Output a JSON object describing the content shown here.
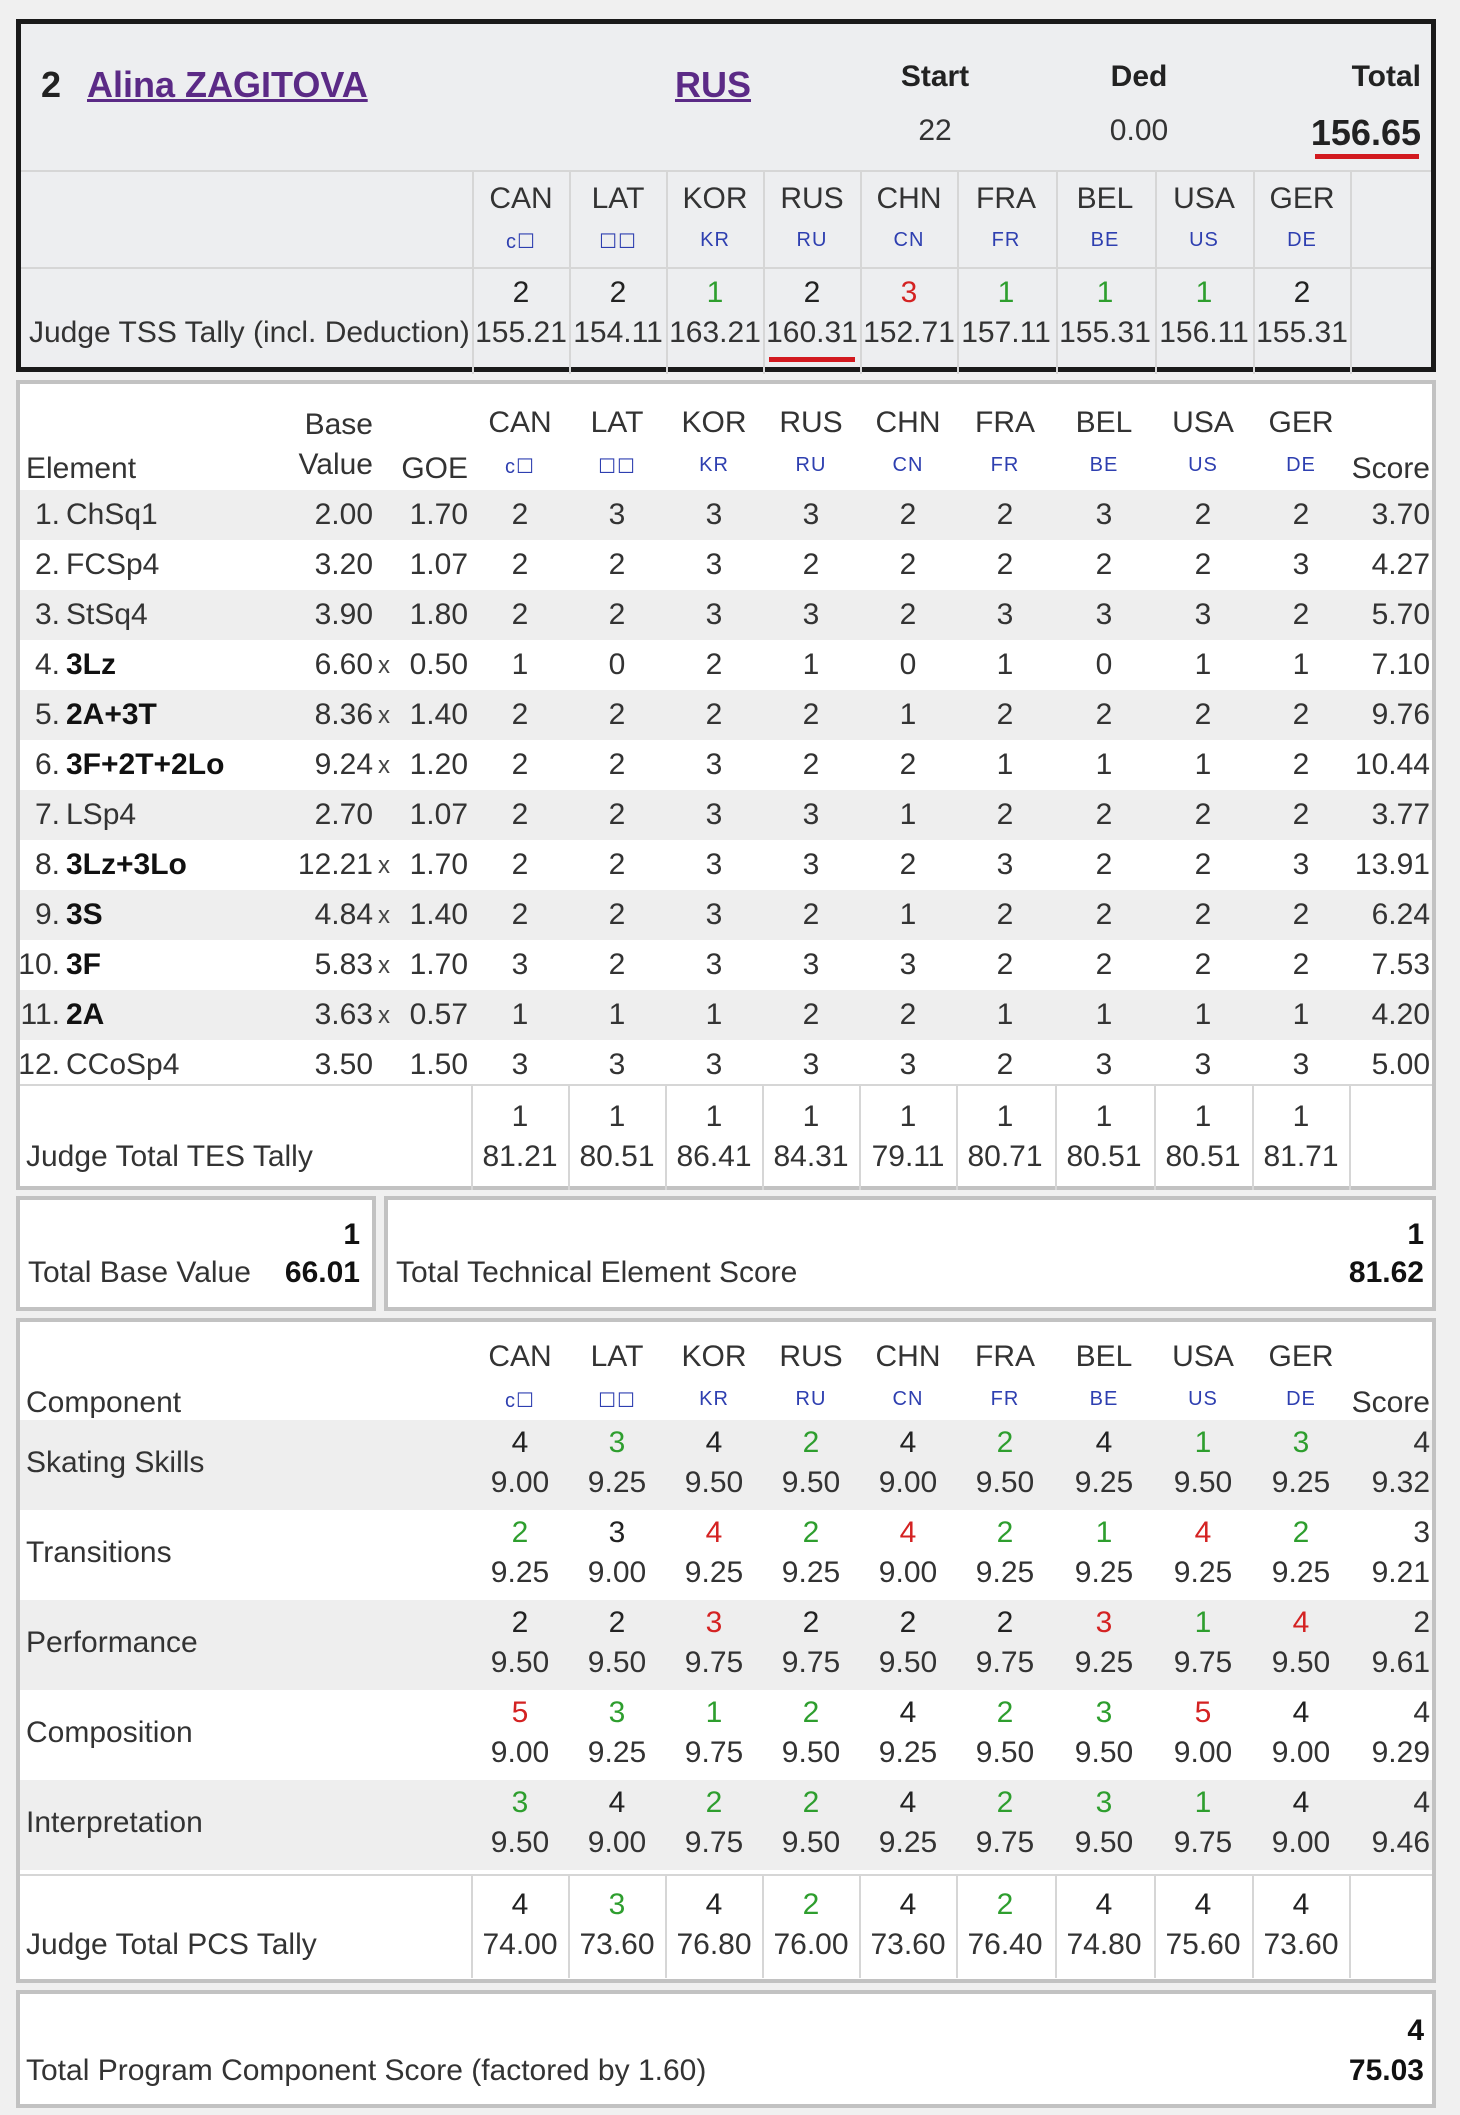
{
  "skater": {
    "rank": "2",
    "name": "Alina ZAGITOVA",
    "nation": "RUS"
  },
  "summary": {
    "start_label": "Start",
    "start_value": "22",
    "ded_label": "Ded",
    "ded_value": "0.00",
    "total_label": "Total",
    "total_value": "156.65"
  },
  "judges": [
    {
      "code": "CAN",
      "flag": "c☐"
    },
    {
      "code": "LAT",
      "flag": "☐☐"
    },
    {
      "code": "KOR",
      "flag": "KR"
    },
    {
      "code": "RUS",
      "flag": "RU"
    },
    {
      "code": "CHN",
      "flag": "CN"
    },
    {
      "code": "FRA",
      "flag": "FR"
    },
    {
      "code": "BEL",
      "flag": "BE"
    },
    {
      "code": "USA",
      "flag": "US"
    },
    {
      "code": "GER",
      "flag": "DE"
    }
  ],
  "tss_tally": {
    "label": "Judge TSS Tally (incl. Deduction)",
    "ranks": [
      {
        "v": "2",
        "color": "black"
      },
      {
        "v": "2",
        "color": "black"
      },
      {
        "v": "1",
        "color": "green"
      },
      {
        "v": "2",
        "color": "black"
      },
      {
        "v": "3",
        "color": "red"
      },
      {
        "v": "1",
        "color": "green"
      },
      {
        "v": "1",
        "color": "green"
      },
      {
        "v": "1",
        "color": "green"
      },
      {
        "v": "2",
        "color": "black"
      }
    ],
    "values": [
      "155.21",
      "154.11",
      "163.21",
      "160.31",
      "152.71",
      "157.11",
      "155.31",
      "156.11",
      "155.31"
    ]
  },
  "elements_header": {
    "element": "Element",
    "base1": "Base",
    "base2": "Value",
    "goe": "GOE",
    "score": "Score"
  },
  "elements": [
    {
      "no": "1.",
      "name": "ChSq1",
      "bold": false,
      "base": "2.00",
      "x": "",
      "goe": "1.70",
      "marks": [
        "2",
        "3",
        "3",
        "3",
        "2",
        "2",
        "3",
        "2",
        "2"
      ],
      "score": "3.70"
    },
    {
      "no": "2.",
      "name": "FCSp4",
      "bold": false,
      "base": "3.20",
      "x": "",
      "goe": "1.07",
      "marks": [
        "2",
        "2",
        "3",
        "2",
        "2",
        "2",
        "2",
        "2",
        "3"
      ],
      "score": "4.27"
    },
    {
      "no": "3.",
      "name": "StSq4",
      "bold": false,
      "base": "3.90",
      "x": "",
      "goe": "1.80",
      "marks": [
        "2",
        "2",
        "3",
        "3",
        "2",
        "3",
        "3",
        "3",
        "2"
      ],
      "score": "5.70"
    },
    {
      "no": "4.",
      "name": "3Lz",
      "bold": true,
      "base": "6.60",
      "x": "x",
      "goe": "0.50",
      "marks": [
        "1",
        "0",
        "2",
        "1",
        "0",
        "1",
        "0",
        "1",
        "1"
      ],
      "score": "7.10"
    },
    {
      "no": "5.",
      "name": "2A+3T",
      "bold": true,
      "base": "8.36",
      "x": "x",
      "goe": "1.40",
      "marks": [
        "2",
        "2",
        "2",
        "2",
        "1",
        "2",
        "2",
        "2",
        "2"
      ],
      "score": "9.76"
    },
    {
      "no": "6.",
      "name": "3F+2T+2Lo",
      "bold": true,
      "base": "9.24",
      "x": "x",
      "goe": "1.20",
      "marks": [
        "2",
        "2",
        "3",
        "2",
        "2",
        "1",
        "1",
        "1",
        "2"
      ],
      "score": "10.44"
    },
    {
      "no": "7.",
      "name": "LSp4",
      "bold": false,
      "base": "2.70",
      "x": "",
      "goe": "1.07",
      "marks": [
        "2",
        "2",
        "3",
        "3",
        "1",
        "2",
        "2",
        "2",
        "2"
      ],
      "score": "3.77"
    },
    {
      "no": "8.",
      "name": "3Lz+3Lo",
      "bold": true,
      "base": "12.21",
      "x": "x",
      "goe": "1.70",
      "marks": [
        "2",
        "2",
        "3",
        "3",
        "2",
        "3",
        "2",
        "2",
        "3"
      ],
      "score": "13.91"
    },
    {
      "no": "9.",
      "name": "3S",
      "bold": true,
      "base": "4.84",
      "x": "x",
      "goe": "1.40",
      "marks": [
        "2",
        "2",
        "3",
        "2",
        "1",
        "2",
        "2",
        "2",
        "2"
      ],
      "score": "6.24"
    },
    {
      "no": "10.",
      "name": "3F",
      "bold": true,
      "base": "5.83",
      "x": "x",
      "goe": "1.70",
      "marks": [
        "3",
        "2",
        "3",
        "3",
        "3",
        "2",
        "2",
        "2",
        "2"
      ],
      "score": "7.53"
    },
    {
      "no": "11.",
      "name": "2A",
      "bold": true,
      "base": "3.63",
      "x": "x",
      "goe": "0.57",
      "marks": [
        "1",
        "1",
        "1",
        "2",
        "2",
        "1",
        "1",
        "1",
        "1"
      ],
      "score": "4.20"
    },
    {
      "no": "12.",
      "name": "CCoSp4",
      "bold": false,
      "base": "3.50",
      "x": "",
      "goe": "1.50",
      "marks": [
        "3",
        "3",
        "3",
        "3",
        "3",
        "2",
        "3",
        "3",
        "3"
      ],
      "score": "5.00"
    }
  ],
  "tes_tally": {
    "label": "Judge Total TES Tally",
    "ranks": [
      "1",
      "1",
      "1",
      "1",
      "1",
      "1",
      "1",
      "1",
      "1"
    ],
    "values": [
      "81.21",
      "80.51",
      "86.41",
      "84.31",
      "79.11",
      "80.71",
      "80.51",
      "80.51",
      "81.71"
    ]
  },
  "totals": {
    "base_label": "Total Base Value",
    "base_rank": "1",
    "base_value": "66.01",
    "tes_label": "Total Technical Element Score",
    "tes_rank": "1",
    "tes_value": "81.62"
  },
  "components_header": {
    "component": "Component",
    "score": "Score"
  },
  "components": [
    {
      "name": "Skating Skills",
      "ranks": [
        {
          "v": "4",
          "color": "black"
        },
        {
          "v": "3",
          "color": "green"
        },
        {
          "v": "4",
          "color": "black"
        },
        {
          "v": "2",
          "color": "green"
        },
        {
          "v": "4",
          "color": "black"
        },
        {
          "v": "2",
          "color": "green"
        },
        {
          "v": "4",
          "color": "black"
        },
        {
          "v": "1",
          "color": "green"
        },
        {
          "v": "3",
          "color": "green"
        }
      ],
      "values": [
        "9.00",
        "9.25",
        "9.50",
        "9.50",
        "9.00",
        "9.50",
        "9.25",
        "9.50",
        "9.25"
      ],
      "score_rank": "4",
      "score": "9.32"
    },
    {
      "name": "Transitions",
      "ranks": [
        {
          "v": "2",
          "color": "green"
        },
        {
          "v": "3",
          "color": "black"
        },
        {
          "v": "4",
          "color": "red"
        },
        {
          "v": "2",
          "color": "green"
        },
        {
          "v": "4",
          "color": "red"
        },
        {
          "v": "2",
          "color": "green"
        },
        {
          "v": "1",
          "color": "green"
        },
        {
          "v": "4",
          "color": "red"
        },
        {
          "v": "2",
          "color": "green"
        }
      ],
      "values": [
        "9.25",
        "9.00",
        "9.25",
        "9.25",
        "9.00",
        "9.25",
        "9.25",
        "9.25",
        "9.25"
      ],
      "score_rank": "3",
      "score": "9.21"
    },
    {
      "name": "Performance",
      "ranks": [
        {
          "v": "2",
          "color": "black"
        },
        {
          "v": "2",
          "color": "black"
        },
        {
          "v": "3",
          "color": "red"
        },
        {
          "v": "2",
          "color": "black"
        },
        {
          "v": "2",
          "color": "black"
        },
        {
          "v": "2",
          "color": "black"
        },
        {
          "v": "3",
          "color": "red"
        },
        {
          "v": "1",
          "color": "green"
        },
        {
          "v": "4",
          "color": "red"
        }
      ],
      "values": [
        "9.50",
        "9.50",
        "9.75",
        "9.75",
        "9.50",
        "9.75",
        "9.25",
        "9.75",
        "9.50"
      ],
      "score_rank": "2",
      "score": "9.61"
    },
    {
      "name": "Composition",
      "ranks": [
        {
          "v": "5",
          "color": "red"
        },
        {
          "v": "3",
          "color": "green"
        },
        {
          "v": "1",
          "color": "green"
        },
        {
          "v": "2",
          "color": "green"
        },
        {
          "v": "4",
          "color": "black"
        },
        {
          "v": "2",
          "color": "green"
        },
        {
          "v": "3",
          "color": "green"
        },
        {
          "v": "5",
          "color": "red"
        },
        {
          "v": "4",
          "color": "black"
        }
      ],
      "values": [
        "9.00",
        "9.25",
        "9.75",
        "9.50",
        "9.25",
        "9.50",
        "9.50",
        "9.00",
        "9.00"
      ],
      "score_rank": "4",
      "score": "9.29"
    },
    {
      "name": "Interpretation",
      "ranks": [
        {
          "v": "3",
          "color": "green"
        },
        {
          "v": "4",
          "color": "black"
        },
        {
          "v": "2",
          "color": "green"
        },
        {
          "v": "2",
          "color": "green"
        },
        {
          "v": "4",
          "color": "black"
        },
        {
          "v": "2",
          "color": "green"
        },
        {
          "v": "3",
          "color": "green"
        },
        {
          "v": "1",
          "color": "green"
        },
        {
          "v": "4",
          "color": "black"
        }
      ],
      "values": [
        "9.50",
        "9.00",
        "9.75",
        "9.50",
        "9.25",
        "9.75",
        "9.50",
        "9.75",
        "9.00"
      ],
      "score_rank": "4",
      "score": "9.46"
    }
  ],
  "pcs_tally": {
    "label": "Judge Total PCS Tally",
    "ranks": [
      {
        "v": "4",
        "color": "black"
      },
      {
        "v": "3",
        "color": "green"
      },
      {
        "v": "4",
        "color": "black"
      },
      {
        "v": "2",
        "color": "green"
      },
      {
        "v": "4",
        "color": "black"
      },
      {
        "v": "2",
        "color": "green"
      },
      {
        "v": "4",
        "color": "black"
      },
      {
        "v": "4",
        "color": "black"
      },
      {
        "v": "4",
        "color": "black"
      }
    ],
    "values": [
      "74.00",
      "73.60",
      "76.80",
      "76.00",
      "73.60",
      "76.40",
      "74.80",
      "75.60",
      "73.60"
    ]
  },
  "pcs_total": {
    "label": "Total Program Component Score (factored by 1.60)",
    "rank": "4",
    "value": "75.03"
  },
  "colors": {
    "green": "#2e9e2e",
    "red": "#d42222",
    "link": "#5b2a86",
    "flag": "#2e3fb0",
    "underline": "#d2191f"
  }
}
